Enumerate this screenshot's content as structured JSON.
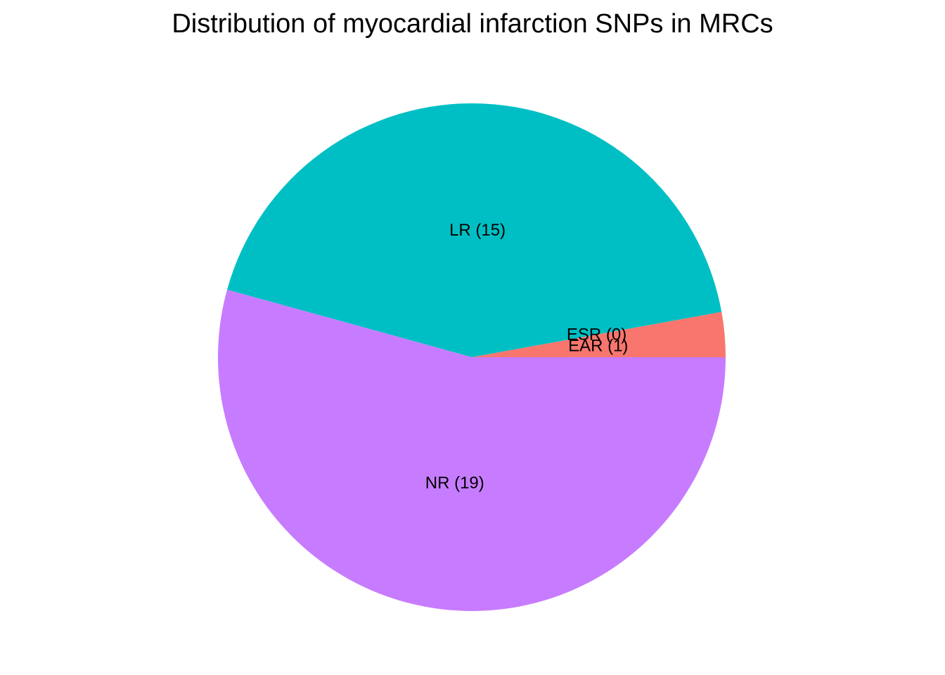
{
  "chart_data": {
    "type": "pie",
    "title": "Distribution of myocardial infarction SNPs in MRCs",
    "slices": [
      {
        "category": "EAR",
        "value": 1,
        "label": "EAR (1)",
        "color": "#F8766D"
      },
      {
        "category": "ESR",
        "value": 0,
        "label": "ESR (0)",
        "color": "#7CAE00"
      },
      {
        "category": "LR",
        "value": 15,
        "label": "LR (15)",
        "color": "#00BFC4"
      },
      {
        "category": "NR",
        "value": 19,
        "label": "NR (19)",
        "color": "#C77CFF"
      }
    ],
    "start_angle_deg": 0,
    "direction": "counterclockwise",
    "legend": "none"
  }
}
